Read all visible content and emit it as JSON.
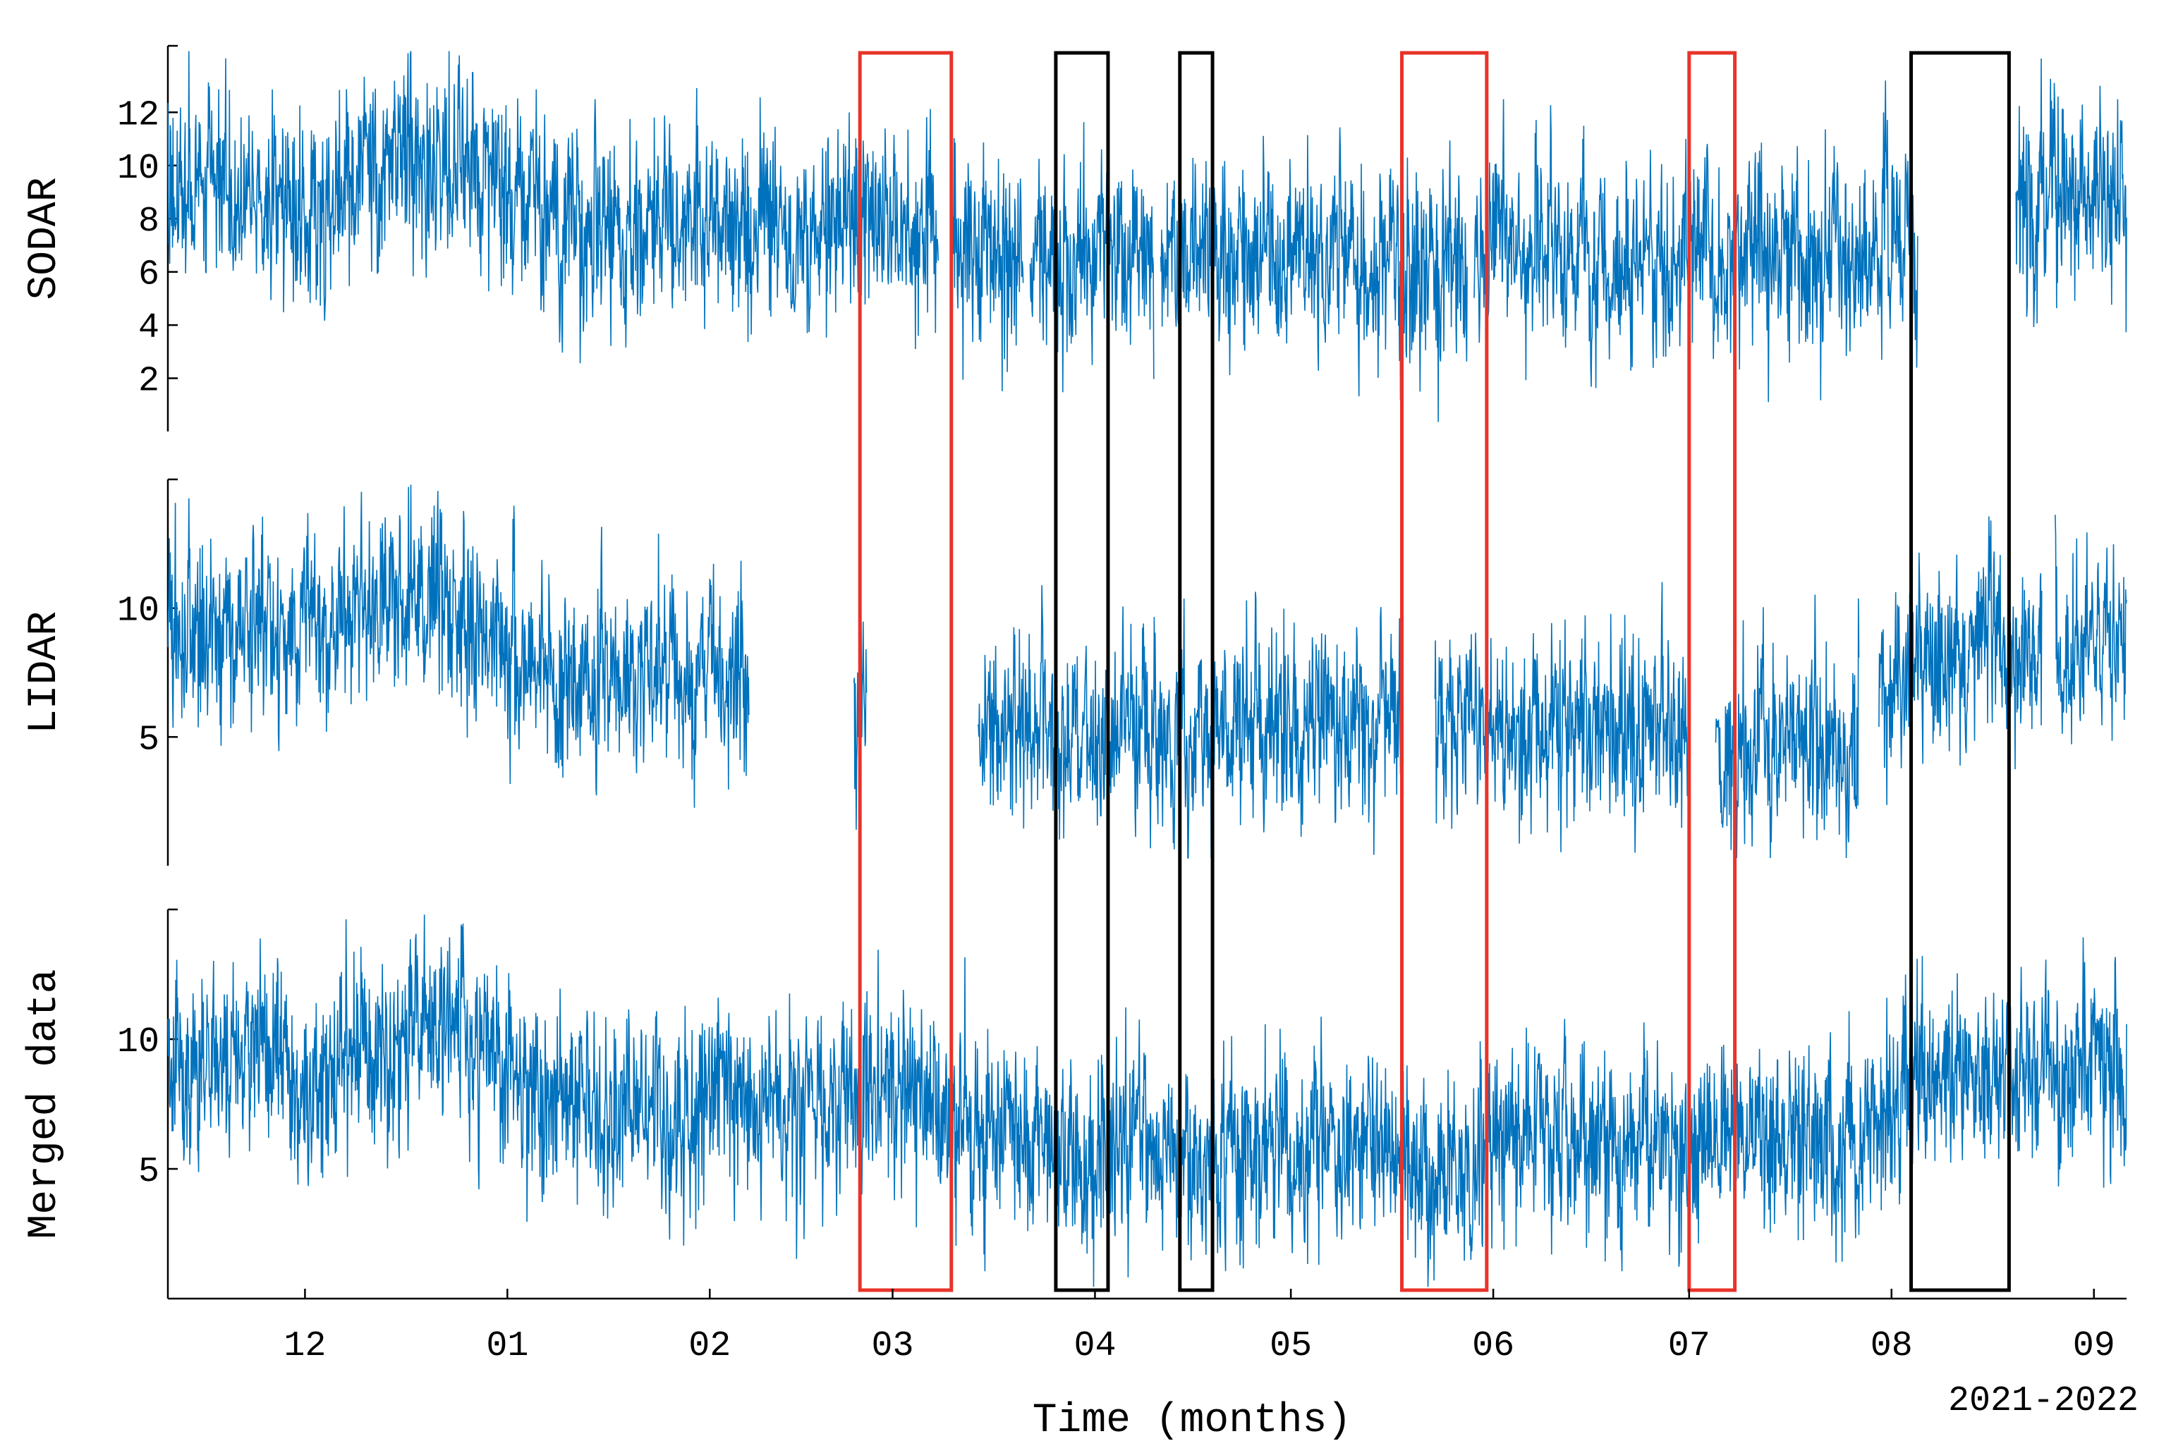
{
  "chart_data": {
    "type": "line",
    "xlabel": "Time (months)",
    "period_label": "2021-2022",
    "x_ticks": [
      {
        "label": "12",
        "date": "2021-12-01"
      },
      {
        "label": "01",
        "date": "2022-01-01"
      },
      {
        "label": "02",
        "date": "2022-02-01"
      },
      {
        "label": "03",
        "date": "2022-03-01"
      },
      {
        "label": "04",
        "date": "2022-04-01"
      },
      {
        "label": "05",
        "date": "2022-05-01"
      },
      {
        "label": "06",
        "date": "2022-06-01"
      },
      {
        "label": "07",
        "date": "2022-07-01"
      },
      {
        "label": "08",
        "date": "2022-08-01"
      },
      {
        "label": "09",
        "date": "2022-09-01"
      }
    ],
    "xlim": [
      "2021-11-10",
      "2022-09-06"
    ],
    "line_color": "#0072bd",
    "panels": [
      {
        "ylabel": "SODAR",
        "yticks": [
          2,
          4,
          6,
          8,
          10,
          12
        ],
        "ylim": [
          0,
          14.5
        ],
        "gaps": [
          {
            "start": "2022-03-08",
            "end": "2022-03-10"
          },
          {
            "start": "2022-03-21",
            "end": "2022-03-22"
          },
          {
            "start": "2022-04-10",
            "end": "2022-04-11"
          },
          {
            "start": "2022-05-28",
            "end": "2022-05-29"
          },
          {
            "start": "2022-08-05",
            "end": "2022-08-20"
          }
        ],
        "series": [
          {
            "x": [
              "2021-11-15",
              "2021-11-25",
              "2021-12-05",
              "2021-12-15",
              "2021-12-25",
              "2022-01-05",
              "2022-01-15",
              "2022-01-25",
              "2022-02-05",
              "2022-02-15",
              "2022-02-25",
              "2022-03-05",
              "2022-03-15",
              "2022-03-25",
              "2022-04-05",
              "2022-04-15",
              "2022-04-25",
              "2022-05-05",
              "2022-05-15",
              "2022-05-25",
              "2022-06-05",
              "2022-06-15",
              "2022-06-25",
              "2022-07-05",
              "2022-07-15",
              "2022-07-25",
              "2022-08-25",
              "2022-09-03"
            ],
            "y": [
              9,
              9.5,
              8.5,
              10.5,
              10.5,
              8,
              7.5,
              7.5,
              8,
              7.5,
              8,
              8,
              7,
              6.5,
              6.5,
              6.5,
              6.5,
              6.5,
              6.5,
              6,
              7,
              6.5,
              6.5,
              6.5,
              6.5,
              6.5,
              9,
              9
            ]
          }
        ]
      },
      {
        "ylabel": "LIDAR",
        "yticks": [
          5,
          10
        ],
        "ylim": [
          0,
          15
        ],
        "gaps": [
          {
            "start": "2022-02-07",
            "end": "2022-02-23"
          },
          {
            "start": "2022-02-25",
            "end": "2022-03-14"
          },
          {
            "start": "2022-05-18",
            "end": "2022-05-23"
          },
          {
            "start": "2022-07-01",
            "end": "2022-07-05"
          },
          {
            "start": "2022-07-27",
            "end": "2022-07-30"
          },
          {
            "start": "2022-08-24",
            "end": "2022-08-26"
          }
        ],
        "series": [
          {
            "x": [
              "2021-11-15",
              "2021-11-25",
              "2021-12-05",
              "2021-12-15",
              "2021-12-25",
              "2022-01-05",
              "2022-01-15",
              "2022-01-25",
              "2022-02-05",
              "2022-03-20",
              "2022-04-01",
              "2022-04-15",
              "2022-05-01",
              "2022-05-15",
              "2022-06-01",
              "2022-06-15",
              "2022-07-10",
              "2022-07-25",
              "2022-08-05",
              "2022-08-20",
              "2022-09-03"
            ],
            "y": [
              8.5,
              9.5,
              9,
              10,
              10,
              7.5,
              7,
              7.5,
              7.5,
              5.5,
              5,
              5,
              5.5,
              5.5,
              5.5,
              5.5,
              4.5,
              4.5,
              8.5,
              8.5,
              9
            ]
          }
        ]
      },
      {
        "ylabel": "Merged data",
        "yticks": [
          5,
          10
        ],
        "ylim": [
          0,
          15
        ],
        "gaps": [],
        "series": [
          {
            "x": [
              "2021-11-15",
              "2021-11-25",
              "2021-12-05",
              "2021-12-15",
              "2021-12-25",
              "2022-01-05",
              "2022-01-15",
              "2022-01-25",
              "2022-02-05",
              "2022-02-15",
              "2022-02-25",
              "2022-03-05",
              "2022-03-15",
              "2022-03-25",
              "2022-04-05",
              "2022-04-15",
              "2022-04-25",
              "2022-05-05",
              "2022-05-15",
              "2022-05-25",
              "2022-06-05",
              "2022-06-15",
              "2022-06-25",
              "2022-07-05",
              "2022-07-15",
              "2022-07-25",
              "2022-08-05",
              "2022-08-20",
              "2022-09-03"
            ],
            "y": [
              9,
              9.5,
              8.5,
              10.5,
              10.5,
              8,
              7.5,
              7.5,
              8,
              7.5,
              8,
              7.5,
              6.5,
              6,
              6,
              5.5,
              5.5,
              6,
              5.5,
              5,
              6.5,
              6.5,
              6,
              6,
              6,
              6,
              8.5,
              8.5,
              9
            ]
          }
        ]
      }
    ],
    "highlight_boxes": [
      {
        "color": "#e8332a",
        "start": "2022-02-24",
        "end": "2022-03-10"
      },
      {
        "color": "#000000",
        "start": "2022-03-26",
        "end": "2022-04-03"
      },
      {
        "color": "#000000",
        "start": "2022-04-14",
        "end": "2022-04-19"
      },
      {
        "color": "#e8332a",
        "start": "2022-05-18",
        "end": "2022-05-31"
      },
      {
        "color": "#e8332a",
        "start": "2022-07-01",
        "end": "2022-07-08"
      },
      {
        "color": "#000000",
        "start": "2022-08-04",
        "end": "2022-08-19"
      }
    ],
    "grid": false
  }
}
